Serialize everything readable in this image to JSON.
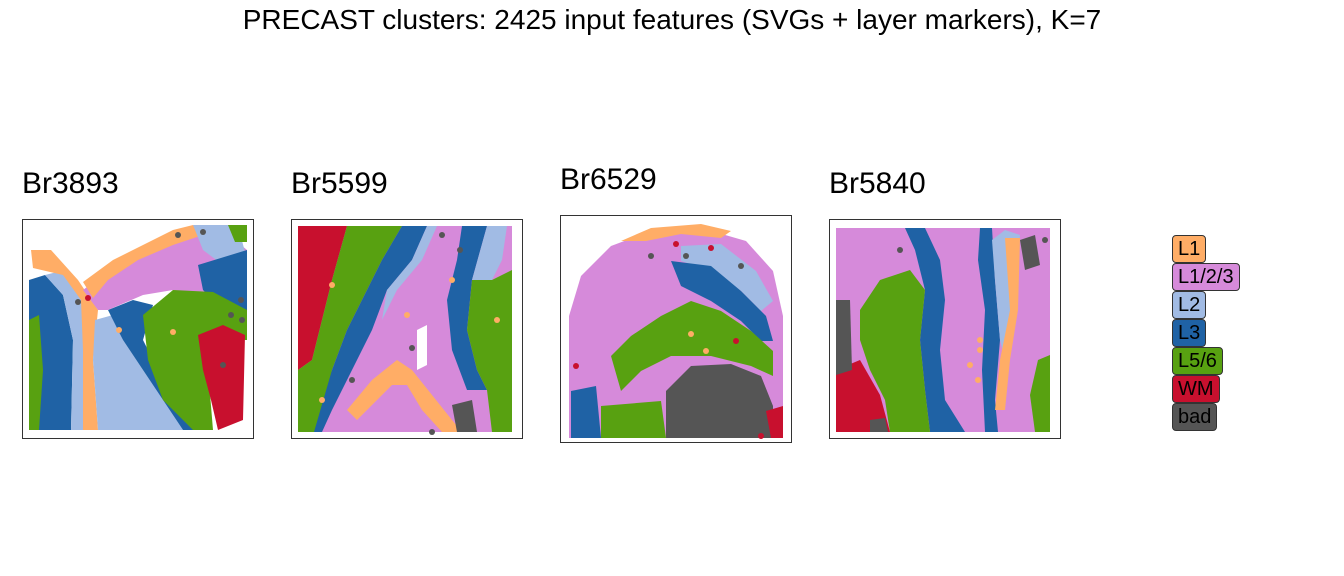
{
  "title": "PRECAST clusters: 2425 input features (SVGs + layer markers), K=7",
  "chart_data": {
    "type": "scatter",
    "facets": [
      {
        "label": "Br3893"
      },
      {
        "label": "Br5599"
      },
      {
        "label": "Br6529"
      },
      {
        "label": "Br5840"
      }
    ],
    "legend": {
      "placement": "right",
      "entries": [
        {
          "label": "L1",
          "color": "#FFAD66"
        },
        {
          "label": "L1/2/3",
          "color": "#D68ADA"
        },
        {
          "label": "L2",
          "color": "#A1BBE4"
        },
        {
          "label": "L3",
          "color": "#1F62A5"
        },
        {
          "label": "L5/6",
          "color": "#58A111"
        },
        {
          "label": "WM",
          "color": "#C8102E"
        },
        {
          "label": "bad",
          "color": "#555555"
        }
      ]
    },
    "grid": false,
    "axes": "none"
  }
}
